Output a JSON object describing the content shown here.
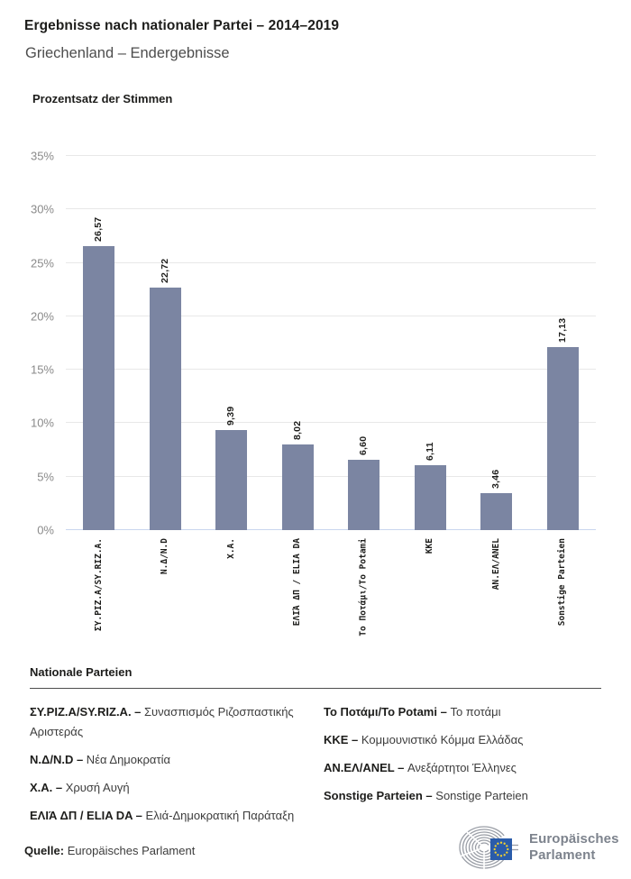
{
  "chart_data": {
    "type": "bar",
    "title": "Ergebnisse nach nationaler Partei – 2014–2019",
    "subtitle": "Griechenland – Endergebnisse",
    "axis_title": "Prozentsatz der Stimmen",
    "categories": [
      "ΣΥ.ΡΙΖ.Α/SY.RIZ.A.",
      "Ν.Δ/N.D",
      "Χ.Α.",
      "ΕΛΙΆ ΔΠ / ELIA DA",
      "Το Ποτάμι/To Potami",
      "KKE",
      "ΑΝ.ΕΛ/ANEL",
      "Sonstige Parteien"
    ],
    "values": [
      26.57,
      22.72,
      9.39,
      8.02,
      6.6,
      6.11,
      3.46,
      17.13
    ],
    "value_labels": [
      "26,57",
      "22,72",
      "9,39",
      "8,02",
      "6,60",
      "6,11",
      "3,46",
      "17,13"
    ],
    "xlabel": "",
    "ylabel": "Prozentsatz der Stimmen",
    "ylim": [
      0,
      35
    ],
    "yticks": [
      0,
      5,
      10,
      15,
      20,
      25,
      30,
      35
    ],
    "ytick_labels": [
      "0%",
      "5%",
      "10%",
      "15%",
      "20%",
      "25%",
      "30%",
      "35%"
    ],
    "grid": true,
    "legend_position": "none",
    "bar_color": "#7b85a2"
  },
  "legend": {
    "heading": "Nationale Parteien",
    "columns": [
      [
        {
          "abbr": "ΣΥ.ΡΙΖ.Α/SY.RIZ.A. –",
          "name": "Συνασπισμός Ριζοσπαστικής Αριστεράς"
        },
        {
          "abbr": "Ν.Δ/N.D –",
          "name": "Νέα Δημοκρατία"
        },
        {
          "abbr": "Χ.Α. –",
          "name": "Χρυσή Αυγή"
        },
        {
          "abbr": "ΕΛΙΆ ΔΠ / ELIA DA –",
          "name": "Ελιά-Δημοκρατική Παράταξη"
        }
      ],
      [
        {
          "abbr": "Το Ποτάμι/To Potami –",
          "name": "Το ποτάμι"
        },
        {
          "abbr": "ΚΚΕ –",
          "name": "Κομμουνιστικό Κόμμα Ελλάδας"
        },
        {
          "abbr": "ΑΝ.ΕΛ/ANEL –",
          "name": "Ανεξάρτητοι Έλληνες"
        },
        {
          "abbr": "Sonstige Parteien –",
          "name": "Sonstige Parteien"
        }
      ]
    ]
  },
  "footer": {
    "source_label": "Quelle:",
    "source": "Europäisches Parlament",
    "logo_line1": "Europäisches",
    "logo_line2": "Parlament"
  }
}
